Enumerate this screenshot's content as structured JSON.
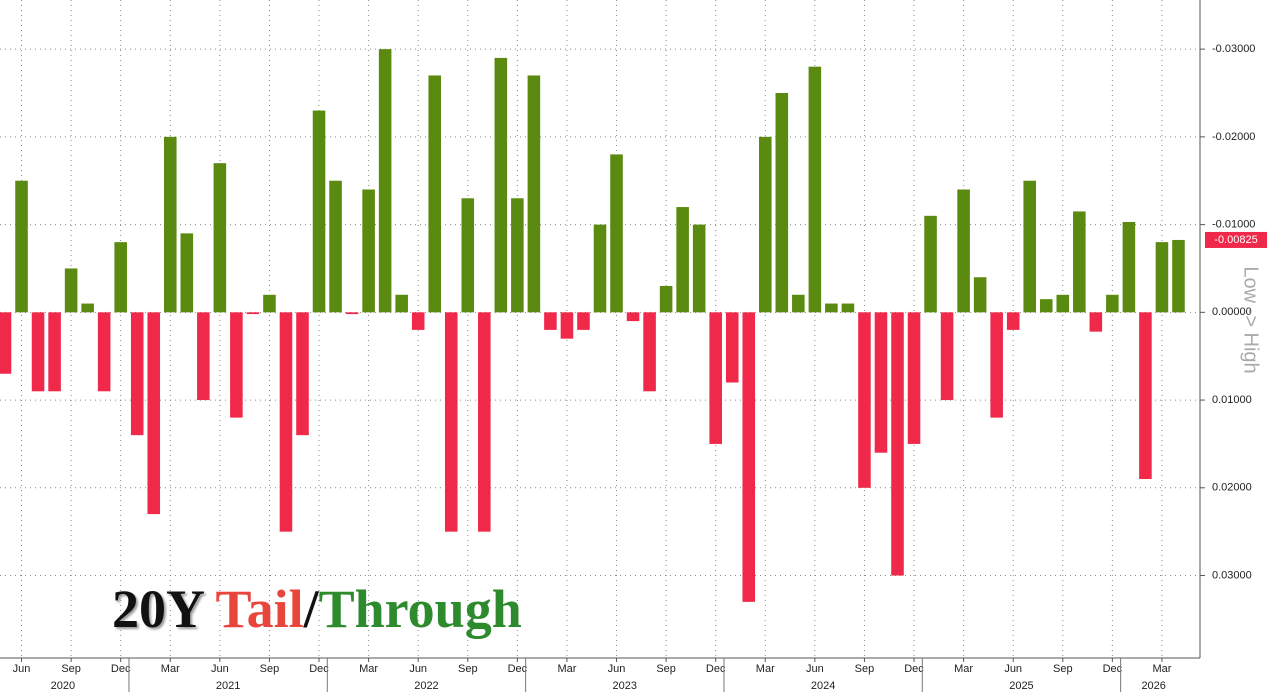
{
  "chart_data": {
    "type": "bar",
    "title_parts": [
      "20Y ",
      "Tail",
      "/",
      "Through"
    ],
    "y_label": "Low -> High",
    "categories": [
      null,
      "Jun",
      null,
      null,
      "Sep",
      null,
      null,
      "Dec",
      null,
      null,
      "Mar",
      null,
      null,
      "Jun",
      null,
      null,
      "Sep",
      null,
      null,
      "Dec",
      null,
      null,
      "Mar",
      null,
      null,
      "Jun",
      null,
      null,
      "Sep",
      null,
      null,
      "Dec",
      null,
      null,
      "Mar",
      null,
      null,
      "Jun",
      null,
      null,
      "Sep",
      null,
      null,
      "Dec",
      null,
      null,
      "Mar",
      null,
      null,
      "Jun",
      null,
      null,
      "Sep",
      null,
      null,
      "Dec",
      null,
      null,
      "Mar",
      null,
      null,
      "Jun",
      null,
      null,
      "Sep",
      null,
      null,
      "Dec",
      null,
      null,
      "Mar",
      null
    ],
    "years": [
      "2020",
      "2021",
      "2022",
      "2023",
      "2024",
      "2025",
      "2026"
    ],
    "values": [
      0.007,
      -0.015,
      0.009,
      0.009,
      -0.005,
      -0.001,
      0.009,
      -0.008,
      0.014,
      0.023,
      -0.02,
      -0.009,
      0.01,
      -0.017,
      0.012,
      0.0002,
      -0.002,
      0.025,
      0.014,
      -0.023,
      -0.015,
      0.0002,
      -0.014,
      -0.03,
      -0.002,
      0.002,
      -0.027,
      0.025,
      -0.013,
      0.025,
      -0.029,
      -0.013,
      -0.027,
      0.002,
      0.003,
      0.002,
      -0.01,
      -0.018,
      0.001,
      0.009,
      -0.003,
      -0.012,
      -0.01,
      0.015,
      0.008,
      0.033,
      -0.02,
      -0.025,
      -0.002,
      -0.028,
      -0.001,
      -0.001,
      0.02,
      0.016,
      0.03,
      0.015,
      -0.011,
      0.01,
      -0.014,
      -0.004,
      0.012,
      0.002,
      -0.015,
      -0.0015,
      -0.002,
      -0.0115,
      0.0022,
      -0.002,
      -0.0103,
      0.019,
      -0.008,
      -0.00825
    ],
    "last_value_label": "-0.00825",
    "colors": {
      "tail": "#f0284a",
      "through": "#5a8a0f"
    },
    "ylim": [
      0.0394,
      -0.0356
    ],
    "yticks": [
      {
        "value": -0.03,
        "label": "-0.03000"
      },
      {
        "value": -0.02,
        "label": "-0.02000"
      },
      {
        "value": -0.01,
        "label": "-0.01000"
      },
      {
        "value": 0,
        "label": "0.00000"
      },
      {
        "value": 0.01,
        "label": "0.01000"
      },
      {
        "value": 0.02,
        "label": "0.02000"
      },
      {
        "value": 0.03,
        "label": "0.03000"
      }
    ],
    "grid": true
  }
}
